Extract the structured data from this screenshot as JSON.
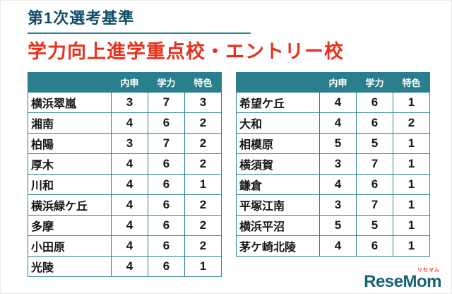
{
  "header": {
    "title": "第1次選考基準",
    "subtitle": "学力向上進学重点校・エントリー校"
  },
  "tables": {
    "headers": [
      "内申",
      "学力",
      "特色"
    ],
    "left": {
      "rows": [
        {
          "name": "横浜翠嵐",
          "values": [
            "3",
            "7",
            "3"
          ]
        },
        {
          "name": "湘南",
          "values": [
            "4",
            "6",
            "2"
          ]
        },
        {
          "name": "柏陽",
          "values": [
            "3",
            "7",
            "2"
          ]
        },
        {
          "name": "厚木",
          "values": [
            "4",
            "6",
            "2"
          ]
        },
        {
          "name": "川和",
          "values": [
            "4",
            "6",
            "1"
          ]
        },
        {
          "name": "横浜緑ケ丘",
          "values": [
            "4",
            "6",
            "2"
          ]
        },
        {
          "name": "多摩",
          "values": [
            "4",
            "6",
            "2"
          ]
        },
        {
          "name": "小田原",
          "values": [
            "4",
            "6",
            "2"
          ]
        },
        {
          "name": "光陵",
          "values": [
            "4",
            "6",
            "1"
          ]
        }
      ]
    },
    "right": {
      "rows": [
        {
          "name": "希望ケ丘",
          "values": [
            "4",
            "6",
            "1"
          ]
        },
        {
          "name": "大和",
          "values": [
            "4",
            "6",
            "2"
          ]
        },
        {
          "name": "相模原",
          "values": [
            "5",
            "5",
            "1"
          ]
        },
        {
          "name": "横須賀",
          "values": [
            "3",
            "7",
            "1"
          ]
        },
        {
          "name": "鎌倉",
          "values": [
            "4",
            "6",
            "1"
          ]
        },
        {
          "name": "平塚江南",
          "values": [
            "3",
            "7",
            "1"
          ]
        },
        {
          "name": "横浜平沼",
          "values": [
            "5",
            "5",
            "1"
          ]
        },
        {
          "name": "茅ケ崎北陵",
          "values": [
            "4",
            "6",
            "1"
          ]
        }
      ]
    }
  },
  "logo": {
    "text": "ReseMom",
    "ruby": "リセマム"
  },
  "colors": {
    "teal": "#2a7f8f",
    "navy": "#0f4d66",
    "red": "#e6311c",
    "ink": "#161616",
    "logo": "#1a6173"
  }
}
